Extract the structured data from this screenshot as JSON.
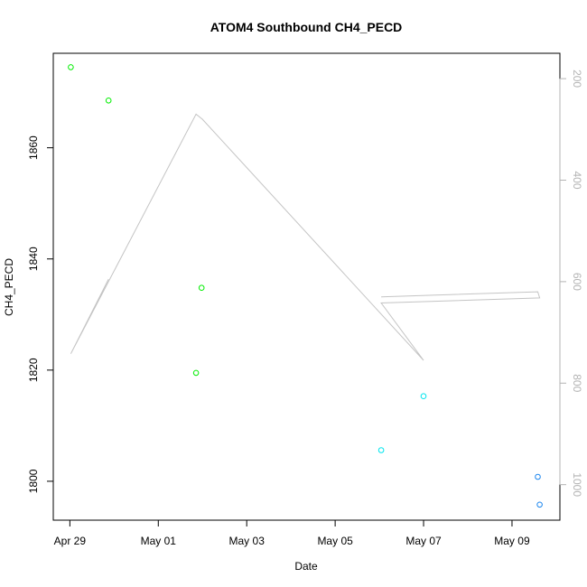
{
  "chart_data": {
    "type": "scatter",
    "title": "ATOM4 Southbound CH4_PECD",
    "xlabel": "Date",
    "ylabel": "CH4_PECD",
    "x_ticks": [
      "Apr 29",
      "May 01",
      "May 03",
      "May 05",
      "May 07",
      "May 09"
    ],
    "y_ticks": [
      "1800",
      "1820",
      "1840",
      "1860"
    ],
    "y2_ticks": [
      "200",
      "400",
      "600",
      "800",
      "1000"
    ],
    "xlim": [
      "2016-04-28 15:00",
      "2016-05-10 02:00"
    ],
    "ylim": [
      1793,
      1877
    ],
    "y2lim": [
      1070,
      150
    ],
    "grid": false,
    "series": [
      {
        "color": "#00ee00",
        "points": [
          {
            "x": "2016-04-29 00:30",
            "y": 1874.5
          },
          {
            "x": "2016-04-29 21:00",
            "y": 1868.5
          },
          {
            "x": "2016-05-01 20:30",
            "y": 1819.5
          },
          {
            "x": "2016-05-01 23:30",
            "y": 1834.8
          }
        ]
      },
      {
        "color": "#00e5ee",
        "points": [
          {
            "x": "2016-05-06 01:00",
            "y": 1805.6
          },
          {
            "x": "2016-05-07 00:00",
            "y": 1815.3
          }
        ]
      },
      {
        "color": "#1c86ee",
        "points": [
          {
            "x": "2016-05-09 14:00",
            "y": 1800.8
          },
          {
            "x": "2016-05-09 15:00",
            "y": 1795.8
          }
        ]
      }
    ],
    "altitude_track": {
      "color": "#c4c4c4",
      "points": [
        {
          "x": "2016-04-29 21:00",
          "y": 595
        },
        {
          "x": "2016-04-29 00:30",
          "y": 742
        },
        {
          "x": "2016-05-01 20:30",
          "y": 270
        },
        {
          "x": "2016-05-02 00:00",
          "y": 280
        },
        {
          "x": "2016-05-07 00:00",
          "y": 755
        },
        {
          "x": "2016-05-06 01:00",
          "y": 642
        },
        {
          "x": "2016-05-09 15:00",
          "y": 632
        },
        {
          "x": "2016-05-09 14:00",
          "y": 620
        },
        {
          "x": "2016-05-06 01:00",
          "y": 630
        }
      ]
    }
  }
}
